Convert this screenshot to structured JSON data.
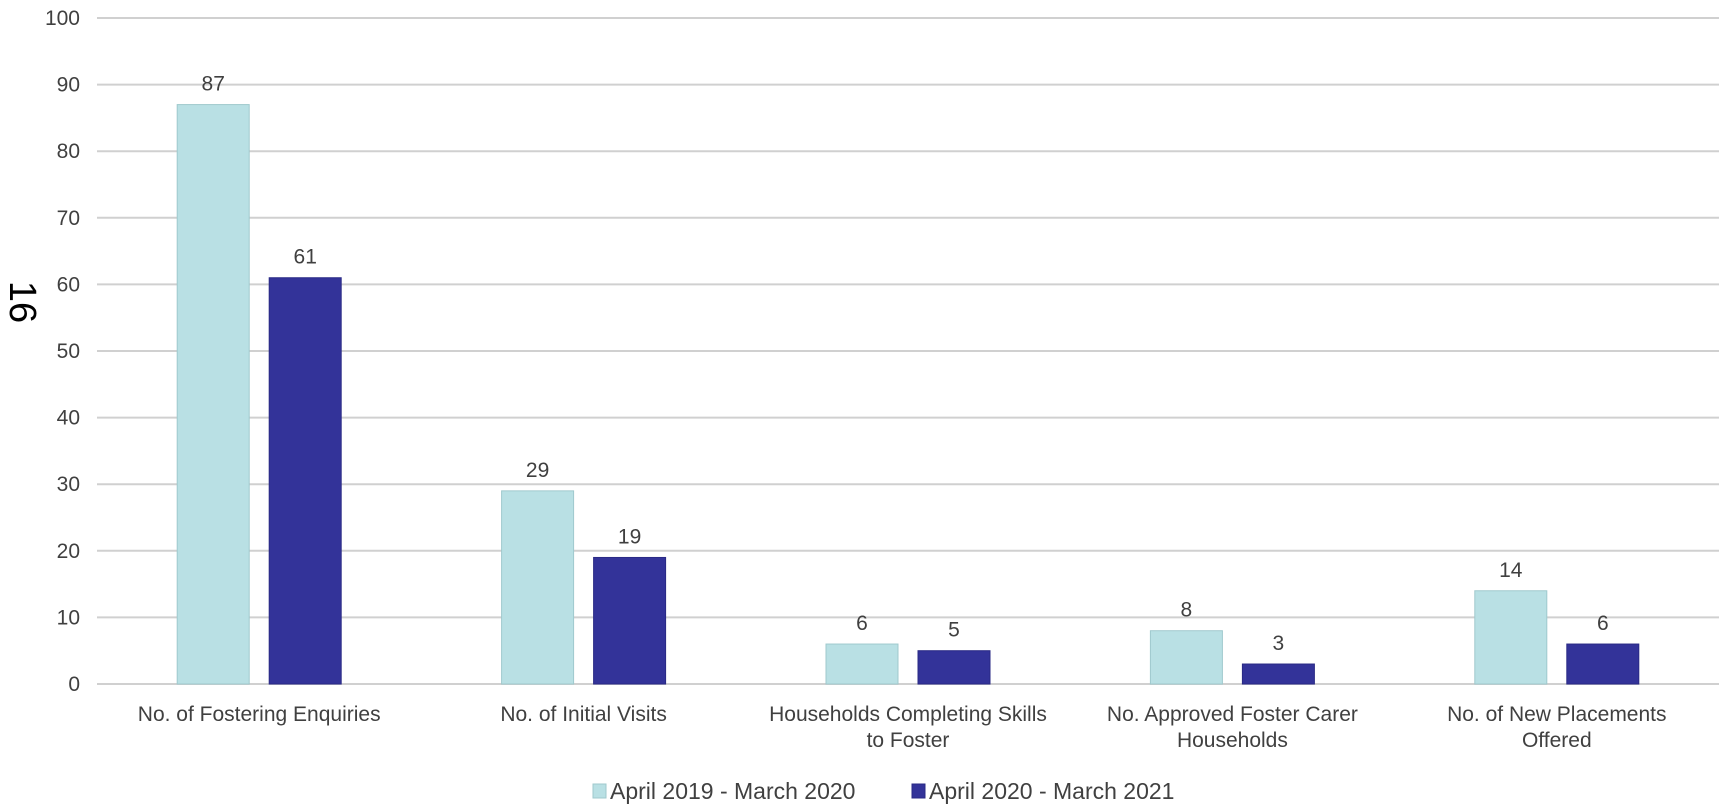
{
  "page_number": "16",
  "chart_data": {
    "type": "bar",
    "categories": [
      [
        "No. of Fostering Enquiries"
      ],
      [
        "No. of Initial Visits"
      ],
      [
        "Households Completing Skills",
        "to Foster"
      ],
      [
        "No. Approved Foster Carer",
        "Households"
      ],
      [
        "No. of New Placements",
        "Offered"
      ]
    ],
    "series": [
      {
        "name": "April 2019 - March 2020",
        "color": "#b9e0e4",
        "values": [
          87,
          29,
          6,
          8,
          14
        ]
      },
      {
        "name": "April 2020 - March 2021",
        "color": "#333399",
        "values": [
          61,
          19,
          5,
          3,
          6
        ]
      }
    ],
    "ylim": [
      0,
      100
    ],
    "yticks": [
      0,
      10,
      20,
      30,
      40,
      50,
      60,
      70,
      80,
      90,
      100
    ],
    "grid": true,
    "legend": "bottom",
    "data_labels": true
  }
}
